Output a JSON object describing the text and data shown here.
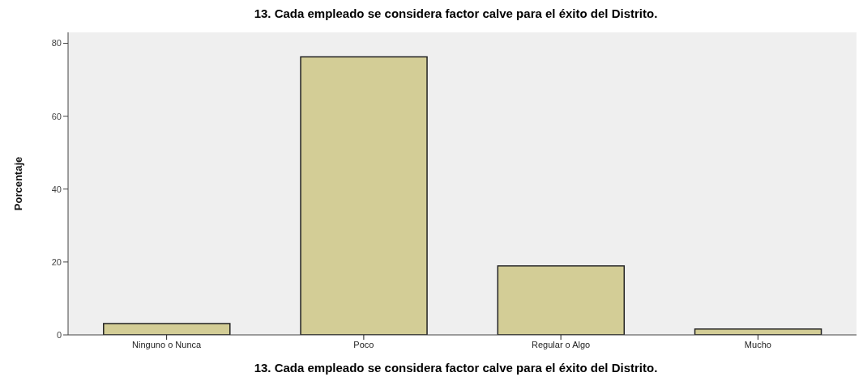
{
  "chart_data": {
    "type": "bar",
    "title": "13. Cada empleado se considera factor calve para el éxito del Distrito.",
    "xlabel": "13. Cada empleado se considera factor calve para el éxito del Distrito.",
    "ylabel": "Porcentaje",
    "categories": [
      "Ninguno o Nunca",
      "Poco",
      "Regular o Algo",
      "Mucho"
    ],
    "values": [
      3.1,
      76.3,
      18.9,
      1.6
    ],
    "color": "#d3cd96",
    "ylim": [
      0,
      83
    ],
    "yticks": [
      0,
      20,
      40,
      60,
      80
    ],
    "grid": false,
    "legend": false
  }
}
